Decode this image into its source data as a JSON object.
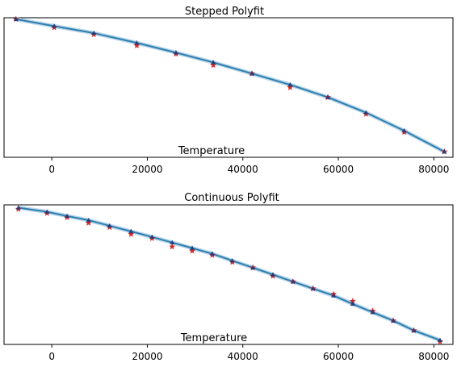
{
  "chart_data": [
    {
      "type": "line",
      "title": "Stepped Polyfit",
      "xlabel": "Temperature",
      "ylabel": "",
      "xlim": [
        -10000,
        84000
      ],
      "ylim": [
        0,
        1
      ],
      "x_ticks": [
        0,
        20000,
        40000,
        60000,
        80000
      ],
      "x_tick_labels": [
        "0",
        "20000",
        "40000",
        "60000",
        "80000"
      ],
      "y_ticks_visible": false,
      "grid": false,
      "fit_curve": {
        "color": "#2e7fb0"
      },
      "series": [
        {
          "marker": "star",
          "color": "#d62728",
          "x": [
            -7500,
            500,
            8800,
            17800,
            26000,
            33800,
            41900,
            49900,
            57800,
            65800,
            73800,
            82200
          ],
          "y": [
            0.99,
            0.93,
            0.88,
            0.8,
            0.74,
            0.66,
            0.6,
            0.5,
            0.43,
            0.31,
            0.18,
            0.04
          ]
        },
        {
          "marker": "triangle",
          "color": "#1f3b7a",
          "x": [
            -7500,
            500,
            8800,
            17800,
            26000,
            33800,
            41900,
            49900,
            57800,
            65800,
            73800,
            82200
          ],
          "y": [
            0.99,
            0.94,
            0.89,
            0.82,
            0.75,
            0.68,
            0.6,
            0.52,
            0.43,
            0.32,
            0.19,
            0.04
          ]
        }
      ]
    },
    {
      "type": "line",
      "title": "Continuous Polyfit",
      "xlabel": "Temperature",
      "ylabel": "",
      "xlim": [
        -10000,
        84000
      ],
      "ylim": [
        0,
        1
      ],
      "x_ticks": [
        0,
        20000,
        40000,
        60000,
        80000
      ],
      "x_tick_labels": [
        "0",
        "20000",
        "40000",
        "60000",
        "80000"
      ],
      "y_ticks_visible": false,
      "grid": false,
      "fit_curve": {
        "color": "#2e7fb0"
      },
      "series": [
        {
          "marker": "star",
          "color": "#d62728",
          "x": [
            -7000,
            -1000,
            3200,
            7700,
            12100,
            16600,
            21000,
            25200,
            29400,
            33600,
            37800,
            42100,
            46300,
            50500,
            54700,
            59000,
            63000,
            67200,
            71500,
            75800,
            81300
          ],
          "y": [
            0.97,
            0.94,
            0.91,
            0.87,
            0.84,
            0.79,
            0.76,
            0.7,
            0.67,
            0.64,
            0.59,
            0.55,
            0.49,
            0.45,
            0.4,
            0.36,
            0.31,
            0.24,
            0.17,
            0.1,
            0.02
          ]
        },
        {
          "marker": "triangle",
          "color": "#1f3b7a",
          "x": [
            -7000,
            -1000,
            3200,
            7700,
            12100,
            16600,
            21000,
            25200,
            29400,
            33600,
            37800,
            42100,
            46300,
            50500,
            54700,
            59000,
            63000,
            67200,
            71500,
            75800,
            81300
          ],
          "y": [
            0.98,
            0.95,
            0.92,
            0.89,
            0.85,
            0.81,
            0.77,
            0.73,
            0.69,
            0.65,
            0.6,
            0.55,
            0.5,
            0.45,
            0.4,
            0.35,
            0.29,
            0.23,
            0.17,
            0.1,
            0.03
          ]
        }
      ]
    }
  ]
}
